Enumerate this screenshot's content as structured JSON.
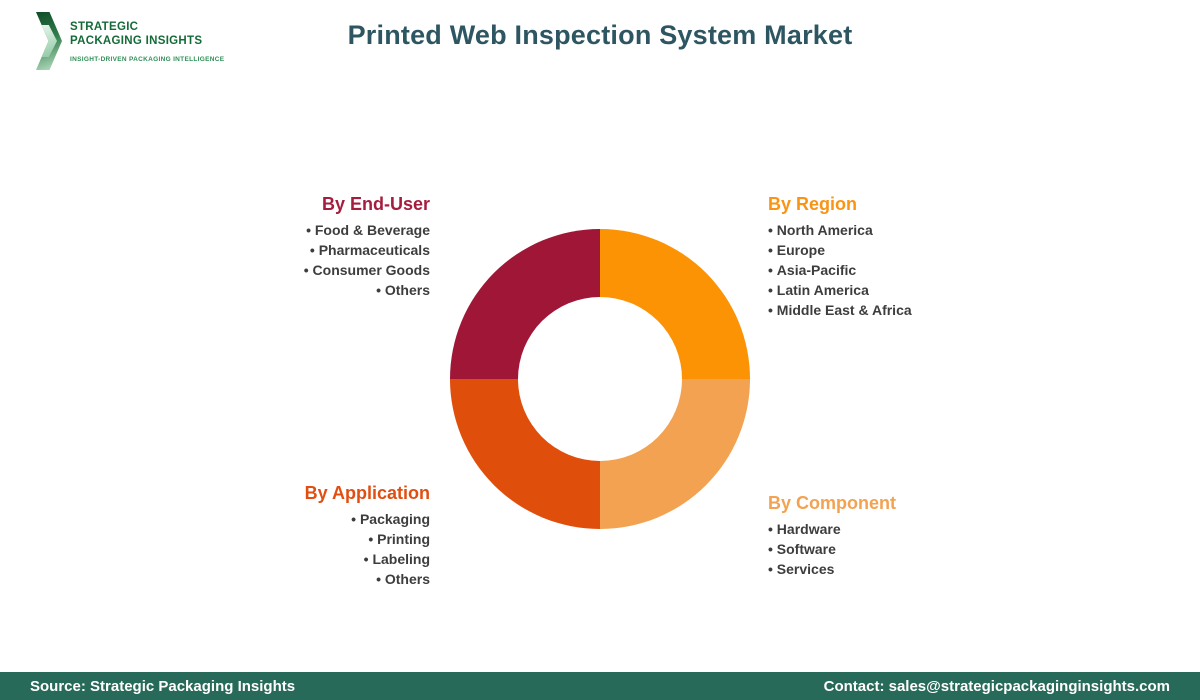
{
  "header": {
    "title": "Printed Web Inspection System Market",
    "logo": {
      "line1": "STRATEGIC",
      "line2": "PACKAGING INSIGHTS",
      "tagline": "INSIGHT-DRIVEN PACKAGING INTELLIGENCE"
    }
  },
  "sections": {
    "end_user": {
      "heading": "By End-User",
      "color": "#A61C3C",
      "items": [
        "Food & Beverage",
        "Pharmaceuticals",
        "Consumer Goods",
        "Others"
      ]
    },
    "region": {
      "heading": "By Region",
      "color": "#F99414",
      "items": [
        "North America",
        "Europe",
        "Asia-Pacific",
        "Latin America",
        "Middle East & Africa"
      ]
    },
    "application": {
      "heading": "By Application",
      "color": "#E04E11",
      "items": [
        "Packaging",
        "Printing",
        "Labeling",
        "Others"
      ]
    },
    "component": {
      "heading": "By Component",
      "color": "#F2A251",
      "items": [
        "Hardware",
        "Software",
        "Services"
      ]
    }
  },
  "chart_data": {
    "type": "pie",
    "title": "Printed Web Inspection System Market",
    "donut_hole_ratio": 0.55,
    "legend_position": "none",
    "slices": [
      {
        "label": "By Region",
        "value": 25,
        "color": "#FB9304"
      },
      {
        "label": "By Component",
        "value": 25,
        "color": "#F2A250"
      },
      {
        "label": "By Application",
        "value": 25,
        "color": "#E04E0C"
      },
      {
        "label": "By End-User",
        "value": 25,
        "color": "#9F1637"
      }
    ]
  },
  "footer": {
    "source": "Source: Strategic Packaging Insights",
    "contact": "Contact: sales@strategicpackaginginsights.com"
  }
}
